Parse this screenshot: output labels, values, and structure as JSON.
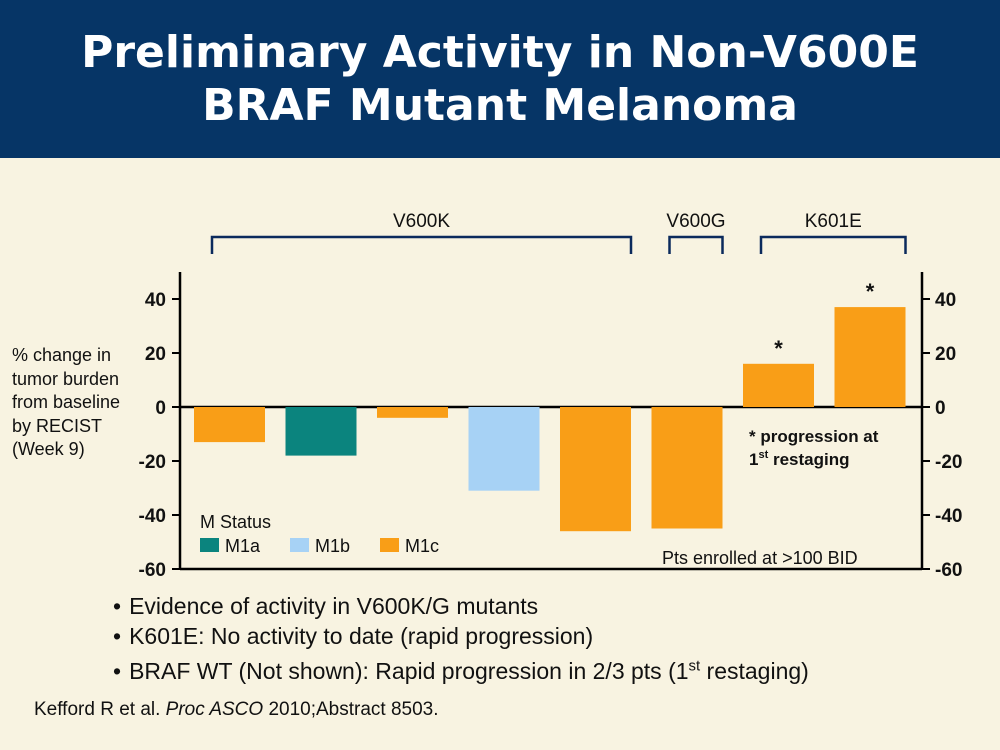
{
  "slide": {
    "title_line1": "Preliminary Activity in Non-V600E",
    "title_line2": "BRAF Mutant Melanoma"
  },
  "chart_data": {
    "type": "bar",
    "ylabel": "% change in tumor burden from baseline by RECIST (Week 9)",
    "ylim": [
      -60,
      50
    ],
    "y_ticks": [
      40,
      20,
      0,
      -20,
      -40,
      -60
    ],
    "groups": [
      {
        "label": "V600K",
        "bars": [
          0,
          4
        ]
      },
      {
        "label": "V600G",
        "bars": [
          5,
          5
        ]
      },
      {
        "label": "K601E",
        "bars": [
          6,
          7
        ]
      }
    ],
    "values": [
      -13,
      -18,
      -4,
      -31,
      -46,
      -45,
      16,
      37
    ],
    "m_status": [
      "M1c",
      "M1a",
      "M1c",
      "M1b",
      "M1c",
      "M1c",
      "M1c",
      "M1c"
    ],
    "asterisk": [
      false,
      false,
      false,
      false,
      false,
      false,
      true,
      true
    ],
    "legend": {
      "title": "M Status",
      "entries": [
        {
          "name": "M1a",
          "color": "#0b847e"
        },
        {
          "name": "M1b",
          "color": "#a7d2f5"
        },
        {
          "name": "M1c",
          "color": "#f99e17"
        }
      ]
    },
    "annotation": "* progression at 1st restaging",
    "footnote": "Pts enrolled at >100 BID",
    "grid": false
  },
  "bullets": [
    "Evidence of activity in V600K/G mutants",
    "K601E: No activity to date (rapid progression)",
    "BRAF WT (Not shown): Rapid progression in 2/3 pts (1st restaging)"
  ],
  "citation": {
    "authors": "Kefford R et al. ",
    "journal": "Proc ASCO",
    "rest": " 2010;Abstract 8503."
  }
}
